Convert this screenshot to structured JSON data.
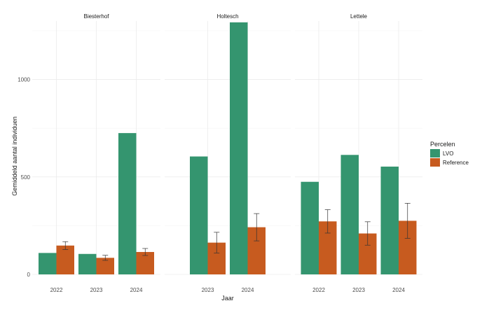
{
  "chart_data": {
    "type": "bar",
    "title": "",
    "xlabel": "Jaar",
    "ylabel": "Gemiddeld aantal individuen",
    "ylim": [
      0,
      1300
    ],
    "yticks": [
      0,
      500,
      1000
    ],
    "grid": true,
    "legend": {
      "title": "Percelen",
      "position": "right",
      "entries": [
        {
          "name": "LVO",
          "color": "#34956f"
        },
        {
          "name": "Reference",
          "color": "#c75b1f"
        }
      ]
    },
    "facets": [
      {
        "name": "Biesterhof",
        "categories": [
          "2022",
          "2023",
          "2024"
        ],
        "series": [
          {
            "name": "LVO",
            "values": [
              110,
              105,
              725
            ]
          },
          {
            "name": "Reference",
            "values": [
              148,
              85,
              115
            ],
            "error_low": [
              128,
              72,
              97
            ],
            "error_high": [
              168,
              98,
              133
            ]
          }
        ]
      },
      {
        "name": "Holtesch",
        "categories": [
          "2023",
          "2024"
        ],
        "series": [
          {
            "name": "LVO",
            "values": [
              605,
              1293
            ]
          },
          {
            "name": "Reference",
            "values": [
              163,
              242
            ],
            "error_low": [
              110,
              172
            ],
            "error_high": [
              216,
              312
            ]
          }
        ]
      },
      {
        "name": "Lettele",
        "categories": [
          "2022",
          "2023",
          "2024"
        ],
        "series": [
          {
            "name": "LVO",
            "values": [
              475,
              613,
              553
            ]
          },
          {
            "name": "Reference",
            "values": [
              272,
              210,
              275
            ],
            "error_low": [
              212,
              150,
              185
            ],
            "error_high": [
              332,
              270,
              365
            ]
          }
        ]
      }
    ]
  }
}
